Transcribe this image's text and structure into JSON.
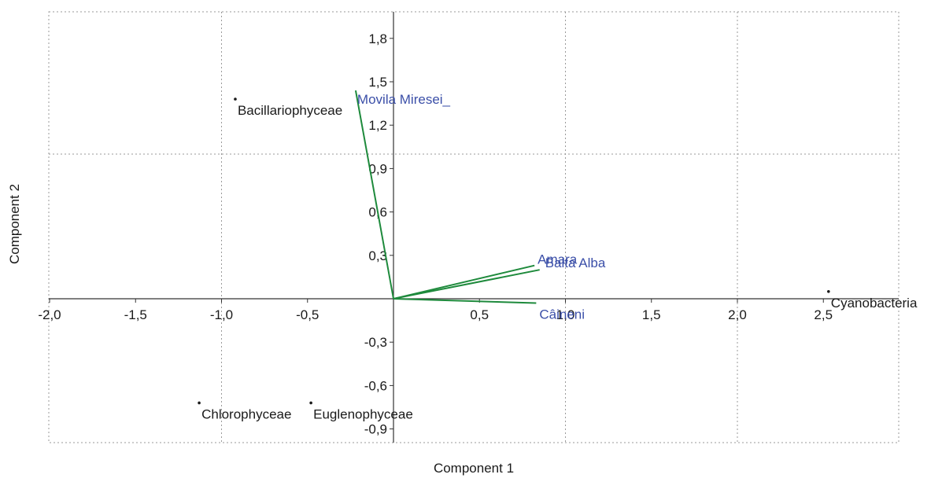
{
  "colors": {
    "vector": "#1e8a3c",
    "vector_label": "#3b4fa8",
    "point": "#1a1a1a",
    "grid": "#9a9a9a",
    "axis": "#333333"
  },
  "chart_data": {
    "type": "scatter",
    "subtype": "biplot",
    "title": "",
    "xlabel": "Component 1",
    "ylabel": "Component 2",
    "xlim": [
      -2.0,
      2.75
    ],
    "ylim": [
      -1.0,
      2.0
    ],
    "grid": true,
    "x_ticks": [
      -2.0,
      -1.5,
      -1.0,
      -0.5,
      0.5,
      1.0,
      1.5,
      2.0,
      2.5
    ],
    "x_tick_labels": [
      "-2,0",
      "-1,5",
      "-1,0",
      "-0,5",
      "0,5",
      "1,0",
      "1,5",
      "2,0",
      "2,5"
    ],
    "y_ticks": [
      1.8,
      1.5,
      1.2,
      0.9,
      0.6,
      0.3,
      -0.3,
      -0.6,
      -0.9
    ],
    "y_tick_labels": [
      "1,8",
      "1,5",
      "1,2",
      "0,9",
      "0,6",
      "0,3",
      "-0,3",
      "-0,6",
      "-0,9"
    ],
    "points": [
      {
        "label": "Bacillariophyceae",
        "x": -0.92,
        "y": 1.38
      },
      {
        "label": "Cyanobacteria",
        "x": 2.53,
        "y": 0.05
      },
      {
        "label": "Chlorophyceae",
        "x": -1.13,
        "y": -0.72
      },
      {
        "label": "Euglenophyceae",
        "x": -0.48,
        "y": -0.72
      }
    ],
    "vectors": [
      {
        "label": "Movila Miresei_",
        "x": -0.22,
        "y": 1.44
      },
      {
        "label": "Amara",
        "x": 0.82,
        "y": 0.23
      },
      {
        "label": "Balta Alba",
        "x": 0.85,
        "y": 0.2
      },
      {
        "label": "Câineni",
        "x": 0.83,
        "y": -0.03
      }
    ]
  }
}
